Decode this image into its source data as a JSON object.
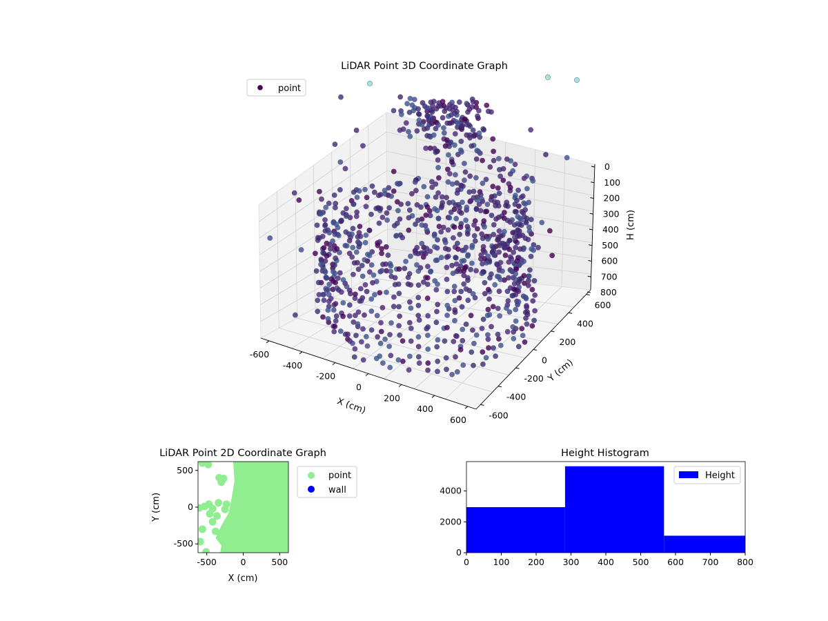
{
  "colors": {
    "point_3d": "#440154",
    "point_2d": "#90ee90",
    "wall": "#0000ff",
    "histogram": "#0000ff"
  },
  "chart_data": [
    {
      "type": "scatter",
      "title": "LiDAR Point 3D Coordinate Graph",
      "xlabel": "X (cm)",
      "ylabel": "Y (cm)",
      "zlabel": "H (cm)",
      "xlim": [
        -650,
        650
      ],
      "ylim": [
        -650,
        650
      ],
      "zlim": [
        0,
        800
      ],
      "x_ticks": [
        "-600",
        "-400",
        "-200",
        "0",
        "200",
        "400",
        "600"
      ],
      "y_ticks": [
        "-600",
        "-400",
        "-200",
        "0",
        "200",
        "400",
        "600"
      ],
      "z_ticks": [
        "0",
        "100",
        "200",
        "300",
        "400",
        "500",
        "600",
        "700",
        "800"
      ],
      "z_inverted": true,
      "grid": true,
      "legend": {
        "entries": [
          "point"
        ],
        "placement": "upper-left"
      },
      "series": [
        {
          "name": "point",
          "description_values": "dense ring of points at radius ~500-600 cm spanning heights 350-800 cm, plus a cluster near x=-300..100, y=300..600, h=150-300 and sparse outliers"
        }
      ]
    },
    {
      "type": "scatter",
      "title": "LiDAR Point 2D Coordinate Graph",
      "xlabel": "X (cm)",
      "ylabel": "Y (cm)",
      "xlim": [
        -620,
        620
      ],
      "ylim": [
        -620,
        620
      ],
      "x_ticks": [
        "-500",
        "0",
        "500"
      ],
      "y_ticks": [
        "-500",
        "0",
        "500"
      ],
      "legend": {
        "entries": [
          "point",
          "wall"
        ],
        "placement": "outside-right"
      },
      "series": [
        {
          "name": "point",
          "color": "#90ee90"
        },
        {
          "name": "wall",
          "color": "#0000ff"
        }
      ]
    },
    {
      "type": "bar",
      "title": "Height Histogram",
      "xlabel": "",
      "ylabel": "",
      "bins": [
        [
          0,
          283
        ],
        [
          283,
          567
        ],
        [
          567,
          800
        ]
      ],
      "values": [
        2950,
        5600,
        1100
      ],
      "xlim": [
        0,
        800
      ],
      "ylim": [
        0,
        5900
      ],
      "x_ticks": [
        "0",
        "100",
        "200",
        "300",
        "400",
        "500",
        "600",
        "700",
        "800"
      ],
      "y_ticks": [
        "0",
        "2000",
        "4000"
      ],
      "legend": {
        "entries": [
          "Height"
        ],
        "placement": "upper-right"
      },
      "series": [
        {
          "name": "Height",
          "values": [
            2950,
            5600,
            1100
          ]
        }
      ]
    }
  ]
}
